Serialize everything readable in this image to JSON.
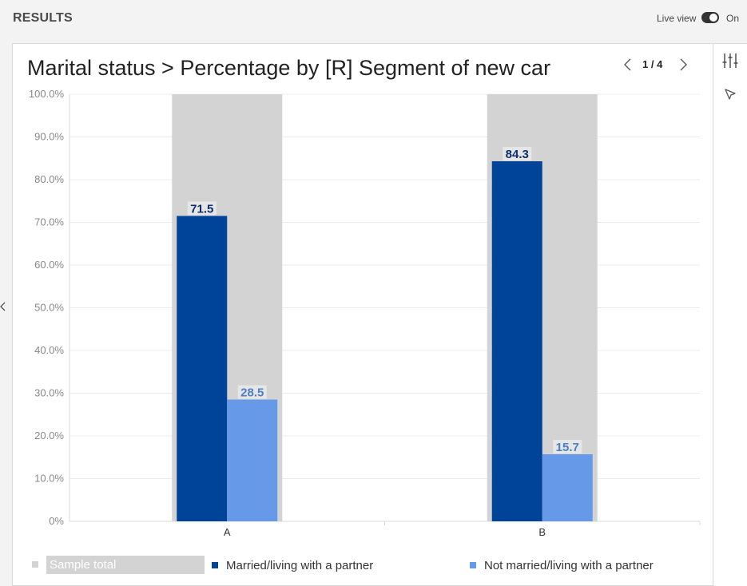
{
  "header": {
    "title": "RESULTS",
    "live_view_label": "Live view",
    "live_view_state": "On"
  },
  "pager": {
    "text": "1 / 4"
  },
  "icons": {
    "settings": "sliders-icon",
    "select": "cursor-arrow-icon",
    "prev": "chevron-left-icon",
    "next": "chevron-right-icon",
    "collapse": "chevron-left-icon"
  },
  "colors": {
    "married": "#00449a",
    "not_married": "#6699e8",
    "sample_total": "#d3d3d3"
  },
  "chart_data": {
    "type": "bar",
    "title": "Marital status > Percentage by [R] Segment of new car",
    "categories": [
      "A",
      "B"
    ],
    "ylim": [
      0,
      100
    ],
    "yticks": [
      "0%",
      "10.0%",
      "20.0%",
      "30.0%",
      "40.0%",
      "50.0%",
      "60.0%",
      "70.0%",
      "80.0%",
      "90.0%",
      "100.0%"
    ],
    "grid": true,
    "legend_position": "bottom",
    "series": [
      {
        "name": "Sample total",
        "values": [
          100,
          100
        ]
      },
      {
        "name": "Married/living with a partner",
        "values": [
          71.5,
          84.3
        ],
        "labels": [
          "71.5",
          "84.3"
        ]
      },
      {
        "name": "Not married/living with a partner",
        "values": [
          28.5,
          15.7
        ],
        "labels": [
          "28.5",
          "15.7"
        ]
      }
    ]
  }
}
